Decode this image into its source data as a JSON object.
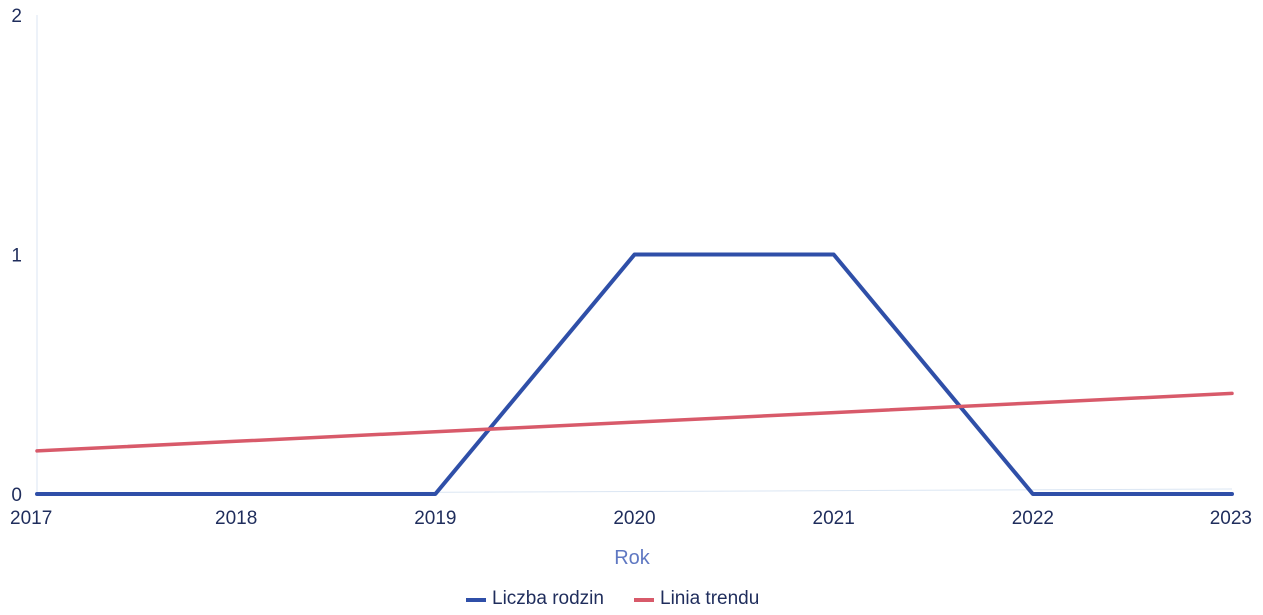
{
  "chart_data": {
    "type": "line",
    "x": [
      "2017",
      "2018",
      "2019",
      "2020",
      "2021",
      "2022",
      "2023"
    ],
    "series": [
      {
        "name": "Liczba rodzin",
        "values": [
          0,
          0,
          0,
          1,
          1,
          0,
          0
        ],
        "color": "#2f4fa8"
      },
      {
        "name": "Linia trendu",
        "values": [
          0.18,
          0.22,
          0.26,
          0.3,
          0.34,
          0.38,
          0.42
        ],
        "color": "#d85a6a"
      }
    ],
    "xlabel": "Rok",
    "ylabel": "",
    "ylim": [
      0,
      2
    ],
    "yticks": [
      "0",
      "1",
      "2"
    ],
    "legend_position": "bottom",
    "grid": false
  }
}
